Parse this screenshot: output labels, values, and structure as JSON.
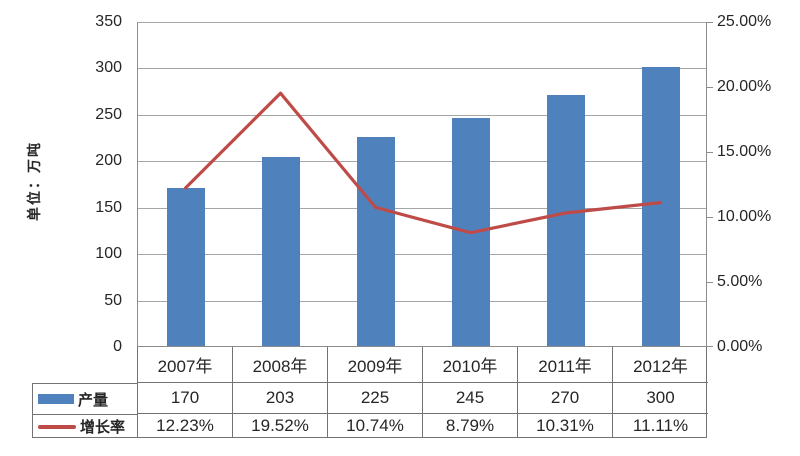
{
  "chart_data": {
    "type": "combo-bar-line",
    "title": "",
    "categories": [
      "2007年",
      "2008年",
      "2009年",
      "2010年",
      "2011年",
      "2012年"
    ],
    "series": [
      {
        "name": "产量",
        "semantic": "production",
        "type": "bar",
        "axis": "left",
        "values": [
          170,
          203,
          225,
          245,
          270,
          300
        ],
        "value_labels": [
          "170",
          "203",
          "225",
          "245",
          "270",
          "300"
        ],
        "color": "#4f81bd"
      },
      {
        "name": "增长率",
        "semantic": "growth-rate",
        "type": "line",
        "axis": "right",
        "values": [
          12.23,
          19.52,
          10.74,
          8.79,
          10.31,
          11.11
        ],
        "value_labels": [
          "12.23%",
          "19.52%",
          "10.74%",
          "8.79%",
          "10.31%",
          "11.11%"
        ],
        "color": "#be4b48"
      }
    ],
    "left_axis": {
      "title": "单位：万吨",
      "min": 0,
      "max": 350,
      "step": 50,
      "tick_labels_top_to_bottom": [
        "350",
        "300",
        "250",
        "200",
        "150",
        "100",
        "50",
        "0"
      ]
    },
    "right_axis": {
      "min": 0,
      "max": 25,
      "step": 5,
      "tick_labels_top_to_bottom": [
        "25.00%",
        "20.00%",
        "15.00%",
        "10.00%",
        "5.00%",
        "0.00%"
      ]
    },
    "legend": {
      "position": "table-left",
      "entries": [
        "产量",
        "增长率"
      ]
    },
    "grid": "horizontal",
    "data_table_shown": true
  },
  "colors": {
    "bar": "#4f81bd",
    "line": "#be4b48",
    "gridline": "#a6a6a6",
    "axis": "#8c8c8c",
    "table_border": "#737373",
    "text": "#262626",
    "background": "#ffffff"
  }
}
